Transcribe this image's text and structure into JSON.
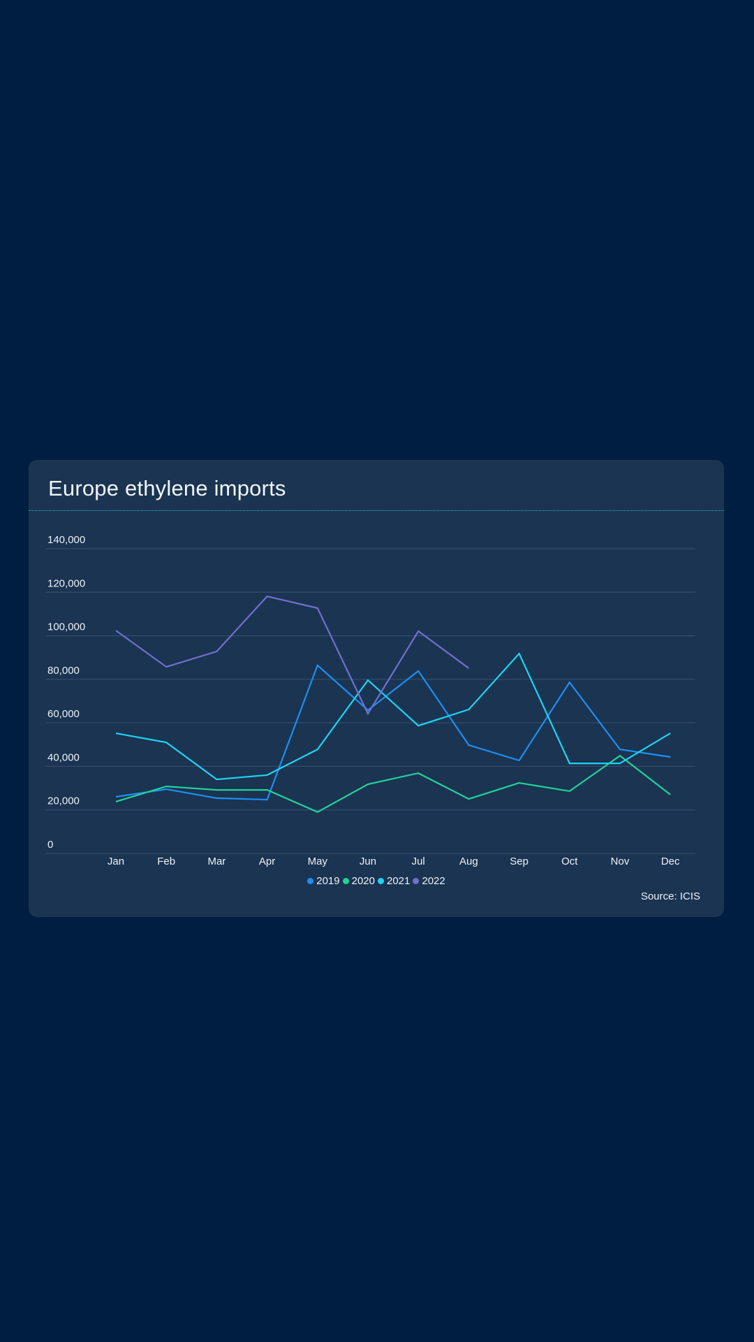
{
  "page": {
    "background": "#001e3f",
    "card_background": "#1a3452"
  },
  "chart_data": {
    "type": "line",
    "title": "Europe ethylene imports",
    "xlabel": "",
    "ylabel": "",
    "categories": [
      "Jan",
      "Feb",
      "Mar",
      "Apr",
      "May",
      "Jun",
      "Jul",
      "Aug",
      "Sep",
      "Oct",
      "Nov",
      "Dec"
    ],
    "ylim": [
      0,
      140000
    ],
    "yticks": [
      0,
      20000,
      40000,
      60000,
      80000,
      100000,
      120000,
      140000
    ],
    "ytick_labels": [
      "0",
      "20,000",
      "40,000",
      "60,000",
      "80,000",
      "100,000",
      "120,000",
      "140,000"
    ],
    "grid": true,
    "legend_position": "bottom-center",
    "series": [
      {
        "name": "2019",
        "color": "#1e8ff0",
        "values": [
          26000,
          29500,
          25400,
          24700,
          86400,
          65800,
          83800,
          49800,
          42700,
          78600,
          47800,
          44300
        ]
      },
      {
        "name": "2020",
        "color": "#22d39a",
        "values": [
          23800,
          30800,
          29200,
          29200,
          19000,
          31800,
          36900,
          25000,
          32400,
          28600,
          44900,
          27000
        ]
      },
      {
        "name": "2021",
        "color": "#1fd3f2",
        "values": [
          55200,
          51000,
          34000,
          36000,
          47800,
          79600,
          58700,
          66100,
          91800,
          41400,
          41400,
          55200
        ]
      },
      {
        "name": "2022",
        "color": "#7170cf",
        "values": [
          102400,
          85700,
          92800,
          118100,
          112700,
          64200,
          102100,
          85100,
          null,
          null,
          null,
          null
        ]
      }
    ],
    "source": "Source: ICIS"
  }
}
